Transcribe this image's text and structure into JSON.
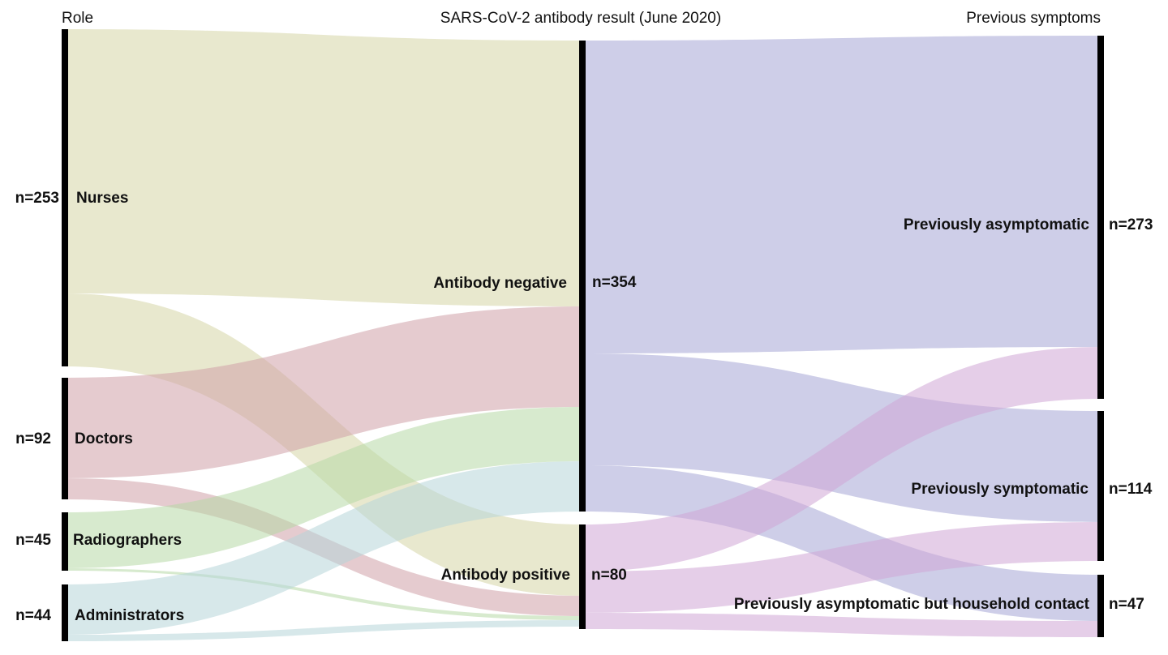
{
  "columns": {
    "left": "Role",
    "middle": "SARS-CoV-2 antibody result (June 2020)",
    "right": "Previous symptoms"
  },
  "nodes": {
    "nurses": {
      "label": "Nurses",
      "count": "n=253"
    },
    "doctors": {
      "label": "Doctors",
      "count": "n=92"
    },
    "radiographers": {
      "label": "Radiographers",
      "count": "n=45"
    },
    "administrators": {
      "label": "Administrators",
      "count": "n=44"
    },
    "antibody_negative": {
      "label": "Antibody negative",
      "count": "n=354"
    },
    "antibody_positive": {
      "label": "Antibody positive",
      "count": "n=80"
    },
    "prev_asymptomatic": {
      "label": "Previously asymptomatic",
      "count": "n=273"
    },
    "prev_symptomatic": {
      "label": "Previously symptomatic",
      "count": "n=114"
    },
    "prev_household": {
      "label": "Previously asymptomatic but household contact",
      "count": "n=47"
    }
  },
  "colors": {
    "nurses": "#d6d6a6",
    "doctors": "#cfa0a8",
    "radiographers": "#b7d9a6",
    "administrators": "#b7d6d9",
    "antibody_negative": "#a6a6d6",
    "antibody_positive": "#cfa6d6",
    "node_bar": "#000000"
  }
}
